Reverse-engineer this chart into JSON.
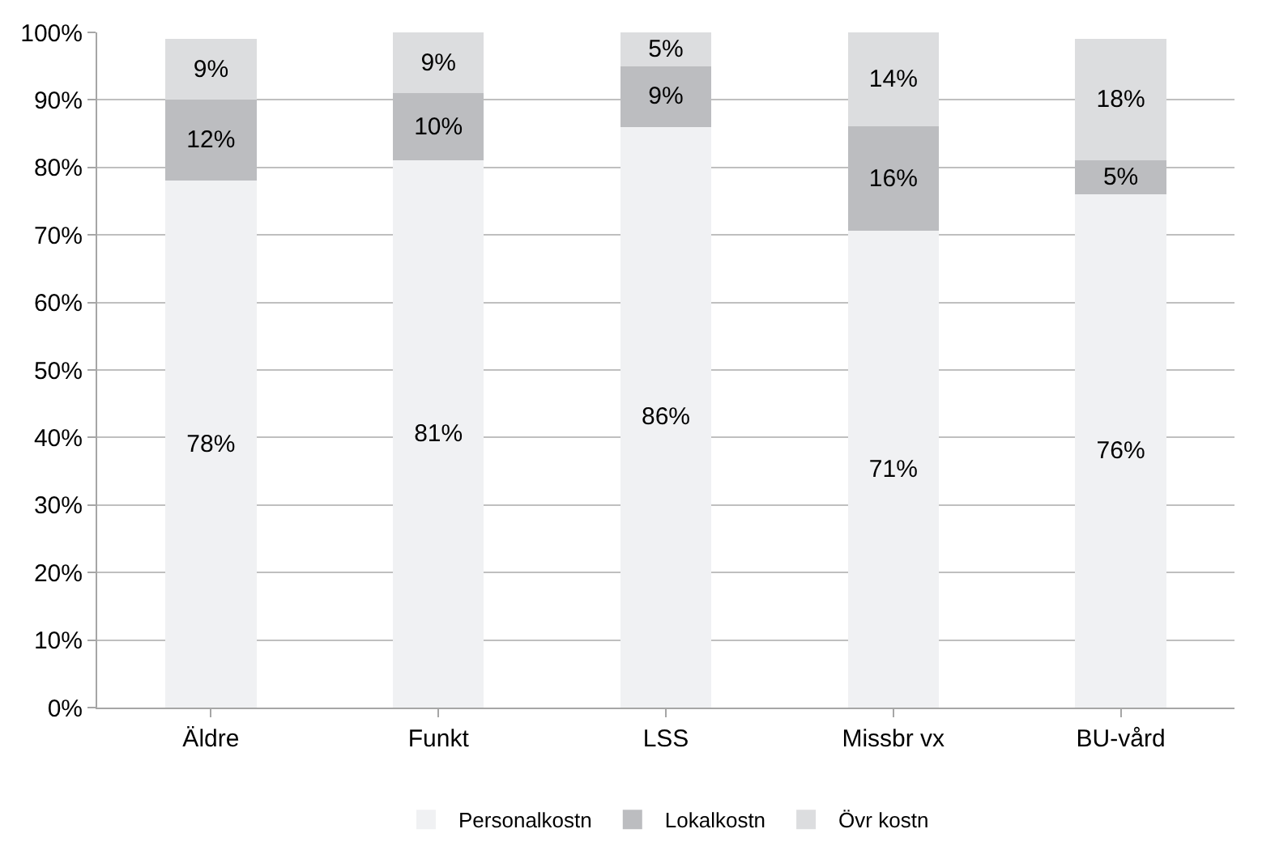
{
  "chart_data": {
    "type": "bar",
    "stacked": true,
    "categories": [
      "Äldre",
      "Funkt",
      "LSS",
      "Missbr vx",
      "BU-vård"
    ],
    "series": [
      {
        "name": "Personalkostn",
        "color": "#f0f1f3",
        "values": [
          78,
          81,
          86,
          70.6,
          76
        ],
        "value_labels": [
          "78%",
          "81%",
          "86%",
          "71%",
          "76%"
        ]
      },
      {
        "name": "Lokalkostn",
        "color": "#bcbdc0",
        "values": [
          12,
          10,
          9,
          15.5,
          5
        ],
        "value_labels": [
          "12%",
          "10%",
          "9%",
          "16%",
          "5%"
        ]
      },
      {
        "name": "Övr kostn",
        "color": "#dcdddf",
        "values": [
          9,
          9,
          5,
          13.9,
          18
        ],
        "value_labels": [
          "9%",
          "9%",
          "5%",
          "14%",
          "18%"
        ]
      }
    ],
    "ylim": [
      0,
      100
    ],
    "yticks": [
      {
        "value": 0,
        "label": "0%"
      },
      {
        "value": 10,
        "label": "10%"
      },
      {
        "value": 20,
        "label": "20%"
      },
      {
        "value": 30,
        "label": "30%"
      },
      {
        "value": 40,
        "label": "40%"
      },
      {
        "value": 50,
        "label": "50%"
      },
      {
        "value": 60,
        "label": "60%"
      },
      {
        "value": 70,
        "label": "70%"
      },
      {
        "value": 80,
        "label": "80%"
      },
      {
        "value": 90,
        "label": "90%"
      },
      {
        "value": 100,
        "label": "100%"
      }
    ],
    "grid": "y",
    "legend": "bottom"
  }
}
